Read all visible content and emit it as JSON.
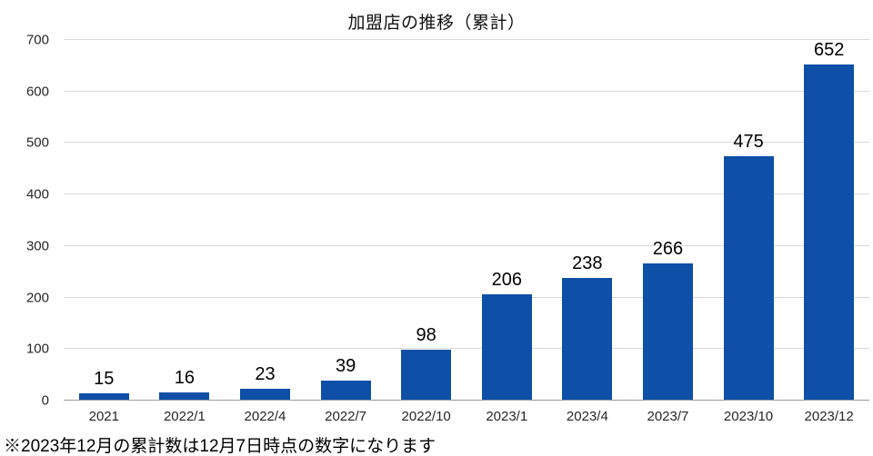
{
  "chart_data": {
    "type": "bar",
    "title": "加盟店の推移（累計）",
    "categories": [
      "2021",
      "2022/1",
      "2022/4",
      "2022/7",
      "2022/10",
      "2023/1",
      "2023/4",
      "2023/7",
      "2023/10",
      "2023/12"
    ],
    "values": [
      15,
      16,
      23,
      39,
      98,
      206,
      238,
      266,
      475,
      652
    ],
    "data_labels_shown": true,
    "xlabel": "",
    "ylabel": "",
    "ylim": [
      0,
      700
    ],
    "yticks": [
      0,
      100,
      200,
      300,
      400,
      500,
      600,
      700
    ],
    "grid": true,
    "legend": "none",
    "footnote": "※2023年12月の累計数は12月7日時点の数字になります"
  },
  "colors": {
    "bar": "#0e4fa8",
    "gridline": "#d9d9d9",
    "axis_line": "#9d9d9d",
    "label_text": "#262626",
    "value_text": "#000000",
    "background": "#ffffff"
  }
}
